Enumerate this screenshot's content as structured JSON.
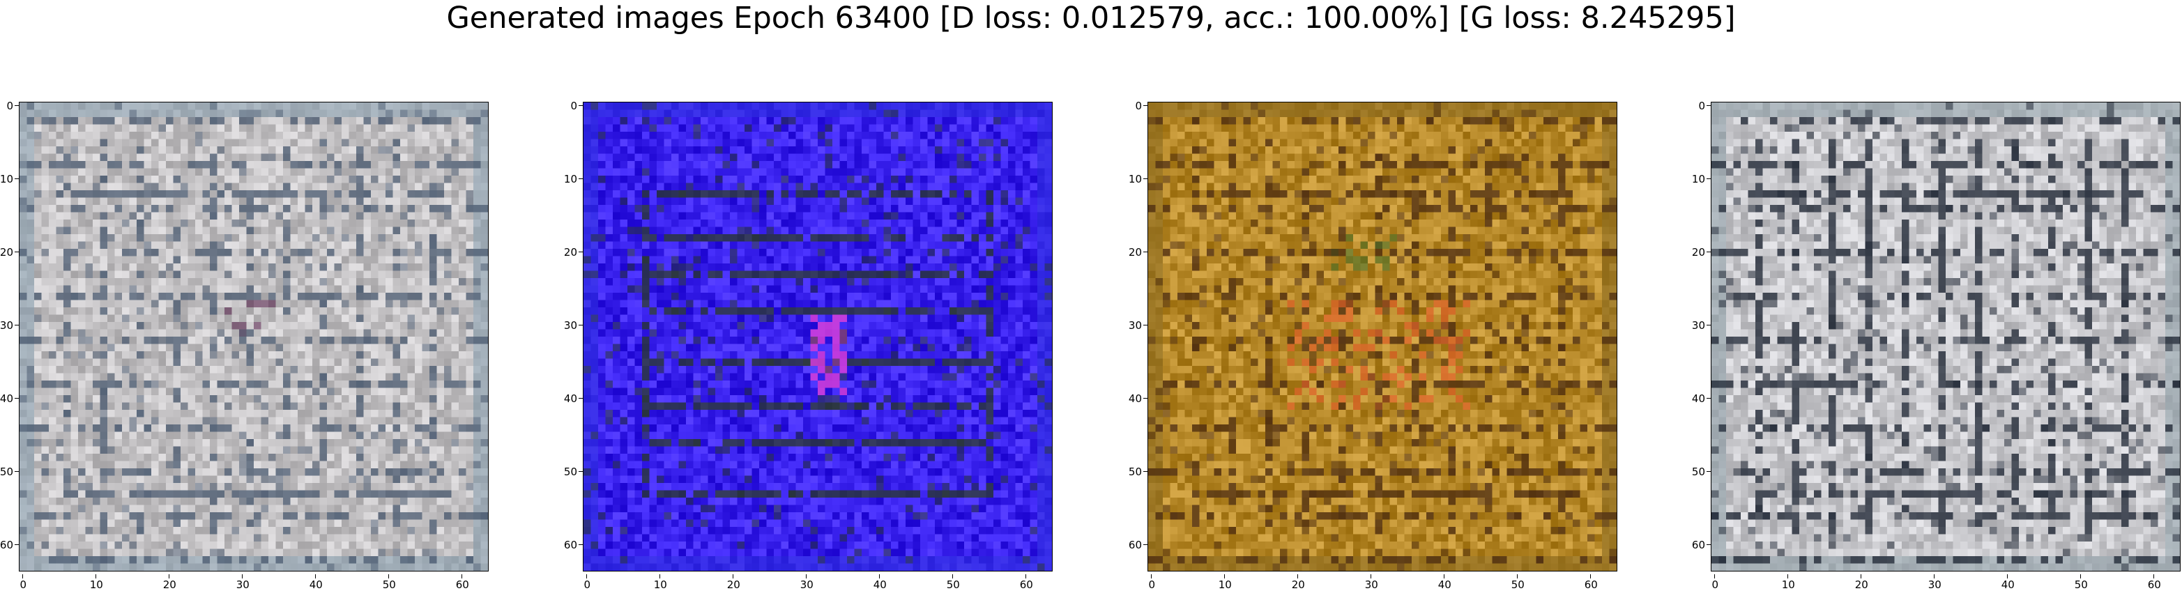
{
  "figure": {
    "title": "Generated images Epoch 63400 [D loss: 0.012579, acc.: 100.00%] [G loss: 8.245295]"
  },
  "axis": {
    "ticks": [
      "0",
      "10",
      "20",
      "30",
      "40",
      "50",
      "60"
    ]
  },
  "panels": [
    {
      "id": "sample-1",
      "palette": {
        "base": "#c4c2c4",
        "line": "#4a5a70",
        "accent": "#1d5a55",
        "border": "#8aa0b0"
      }
    },
    {
      "id": "sample-2",
      "palette": {
        "base": "#3a22ee",
        "line": "#2a3a28",
        "accent": "#d43cd8",
        "border": "#2f2fe0"
      }
    },
    {
      "id": "sample-3",
      "palette": {
        "base": "#b88a2a",
        "line": "#4a2a10",
        "accent": "#e0622a",
        "border": "#8a6a20"
      }
    },
    {
      "id": "sample-4",
      "palette": {
        "base": "#c8c8cc",
        "line": "#1a2230",
        "accent": "#7088a8",
        "border": "#90a0a8"
      }
    }
  ]
}
